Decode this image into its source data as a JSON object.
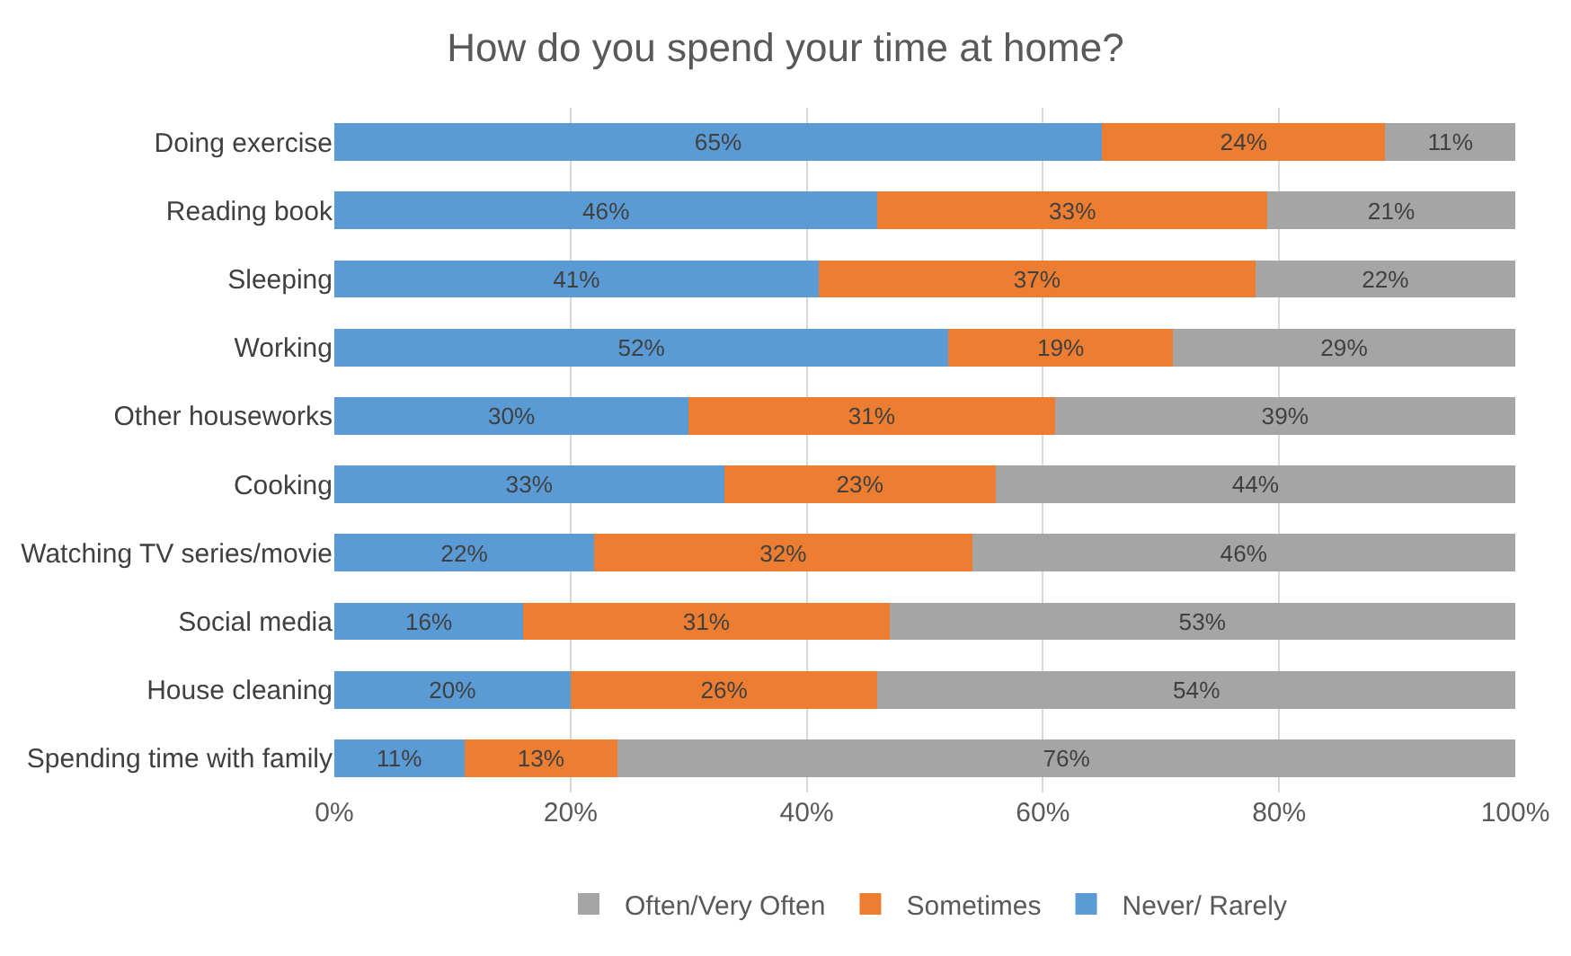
{
  "chart_data": {
    "type": "bar",
    "orientation": "horizontal",
    "stacked": true,
    "title": "How do you spend your time at home?",
    "categories": [
      "Doing exercise",
      "Reading book",
      "Sleeping",
      "Working",
      "Other houseworks",
      "Cooking",
      "Watching TV series/movie",
      "Social media",
      "House cleaning",
      "Spending time with family"
    ],
    "series": [
      {
        "name": "Never/ Rarely",
        "color": "#5b9bd5",
        "values": [
          65,
          46,
          41,
          52,
          30,
          33,
          22,
          16,
          20,
          11
        ],
        "value_labels": [
          "65%",
          "46%",
          "41%",
          "52%",
          "30%",
          "33%",
          "22%",
          "16%",
          "20%",
          "11%"
        ]
      },
      {
        "name": "Sometimes",
        "color": "#ed7d31",
        "values": [
          24,
          33,
          37,
          19,
          31,
          23,
          32,
          31,
          26,
          13
        ],
        "value_labels": [
          "24%",
          "33%",
          "37%",
          "19%",
          "31%",
          "23%",
          "32%",
          "31%",
          "26%",
          "13%"
        ]
      },
      {
        "name": "Often/Very Often",
        "color": "#a5a5a5",
        "values": [
          11,
          21,
          22,
          29,
          39,
          44,
          46,
          53,
          54,
          76
        ],
        "value_labels": [
          "11%",
          "21%",
          "22%",
          "29%",
          "39%",
          "44%",
          "46%",
          "53%",
          "54%",
          "76%"
        ]
      }
    ],
    "xlim": [
      0,
      100
    ],
    "xticks": [
      {
        "value": 0,
        "label": "0%"
      },
      {
        "value": 20,
        "label": "20%"
      },
      {
        "value": 40,
        "label": "40%"
      },
      {
        "value": 60,
        "label": "60%"
      },
      {
        "value": 80,
        "label": "80%"
      },
      {
        "value": 100,
        "label": "100%"
      }
    ],
    "grid": "x",
    "legend": "bottom"
  }
}
